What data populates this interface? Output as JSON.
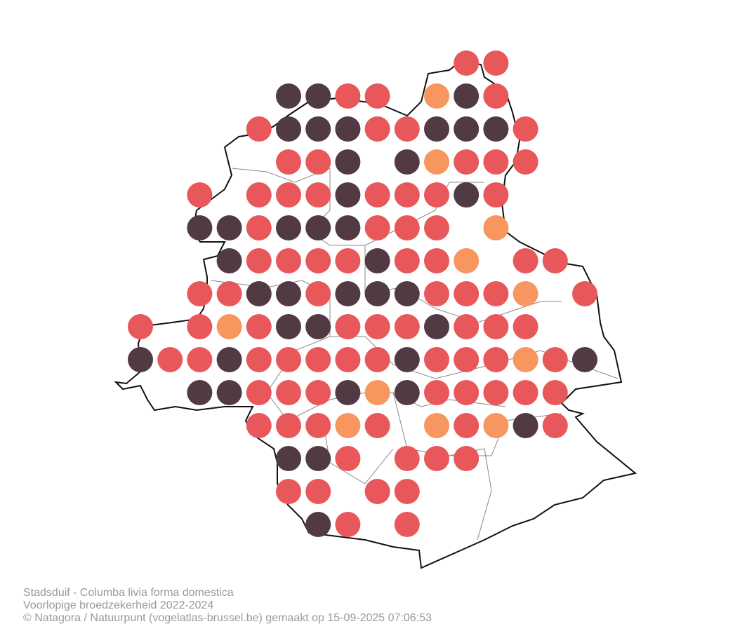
{
  "map": {
    "dot_rows": [
      [
        null,
        null,
        null,
        null,
        null,
        null,
        null,
        null,
        null,
        null,
        null,
        "#e8575a",
        "#e8575a",
        null,
        null,
        null
      ],
      [
        null,
        null,
        null,
        null,
        null,
        "#513a43",
        "#513a43",
        "#e8575a",
        "#e8575a",
        null,
        "#f7965e",
        "#513a43",
        "#e8575a",
        null,
        null,
        null
      ],
      [
        null,
        null,
        null,
        null,
        "#e8575a",
        "#513a43",
        "#513a43",
        "#513a43",
        "#e8575a",
        "#e8575a",
        "#513a43",
        "#513a43",
        "#513a43",
        "#e8575a",
        null,
        null
      ],
      [
        null,
        null,
        null,
        null,
        null,
        "#e8575a",
        "#e8575a",
        "#513a43",
        null,
        "#513a43",
        "#f7965e",
        "#e8575a",
        "#e8575a",
        "#e8575a",
        null,
        null
      ],
      [
        null,
        null,
        "#e8575a",
        null,
        "#e8575a",
        "#e8575a",
        "#e8575a",
        "#513a43",
        "#e8575a",
        "#e8575a",
        "#e8575a",
        "#513a43",
        "#e8575a",
        null,
        null,
        null
      ],
      [
        null,
        null,
        "#513a43",
        "#513a43",
        "#e8575a",
        "#513a43",
        "#513a43",
        "#513a43",
        "#e8575a",
        "#e8575a",
        "#e8575a",
        null,
        "#f7965e",
        null,
        null,
        null
      ],
      [
        null,
        null,
        null,
        "#513a43",
        "#e8575a",
        "#e8575a",
        "#e8575a",
        "#e8575a",
        "#513a43",
        "#e8575a",
        "#e8575a",
        "#f7965e",
        null,
        "#e8575a",
        "#e8575a",
        null
      ],
      [
        null,
        null,
        "#e8575a",
        "#e8575a",
        "#513a43",
        "#513a43",
        "#e8575a",
        "#513a43",
        "#513a43",
        "#513a43",
        "#e8575a",
        "#e8575a",
        "#e8575a",
        "#f7965e",
        null,
        "#e8575a"
      ],
      [
        "#e8575a",
        null,
        "#e8575a",
        "#f7965e",
        "#e8575a",
        "#513a43",
        "#513a43",
        "#e8575a",
        "#e8575a",
        "#e8575a",
        "#513a43",
        "#e8575a",
        "#e8575a",
        "#e8575a",
        null,
        null
      ],
      [
        "#513a43",
        "#e8575a",
        "#e8575a",
        "#513a43",
        "#e8575a",
        "#e8575a",
        "#e8575a",
        "#e8575a",
        "#e8575a",
        "#513a43",
        "#e8575a",
        "#e8575a",
        "#e8575a",
        "#f7965e",
        "#e8575a",
        "#513a43"
      ],
      [
        null,
        null,
        "#513a43",
        "#513a43",
        "#e8575a",
        "#e8575a",
        "#e8575a",
        "#513a43",
        "#f7965e",
        "#513a43",
        "#e8575a",
        "#e8575a",
        "#e8575a",
        "#e8575a",
        "#e8575a",
        null
      ],
      [
        null,
        null,
        null,
        null,
        "#e8575a",
        "#e8575a",
        "#e8575a",
        "#f7965e",
        "#e8575a",
        null,
        "#f7965e",
        "#e8575a",
        "#f7965e",
        "#513a43",
        "#e8575a",
        null
      ],
      [
        null,
        null,
        null,
        null,
        null,
        "#513a43",
        "#513a43",
        "#e8575a",
        null,
        "#e8575a",
        "#e8575a",
        "#e8575a",
        null,
        null,
        null,
        null
      ],
      [
        null,
        null,
        null,
        null,
        null,
        "#e8575a",
        "#e8575a",
        null,
        "#e8575a",
        "#e8575a",
        null,
        null,
        null,
        null,
        null,
        null
      ],
      [
        null,
        null,
        null,
        null,
        null,
        null,
        "#513a43",
        "#e8575a",
        null,
        "#e8575a",
        null,
        null,
        null,
        null,
        null,
        null
      ]
    ],
    "caption": [
      "Stadsduif - Columba livia forma domestica",
      "Voorlopige broedzekerheid 2022-2024",
      "© Natagora / Natuurpunt (vogelatlas-brussel.be) gemaakt op 15-09-2025 07:06:53"
    ]
  }
}
